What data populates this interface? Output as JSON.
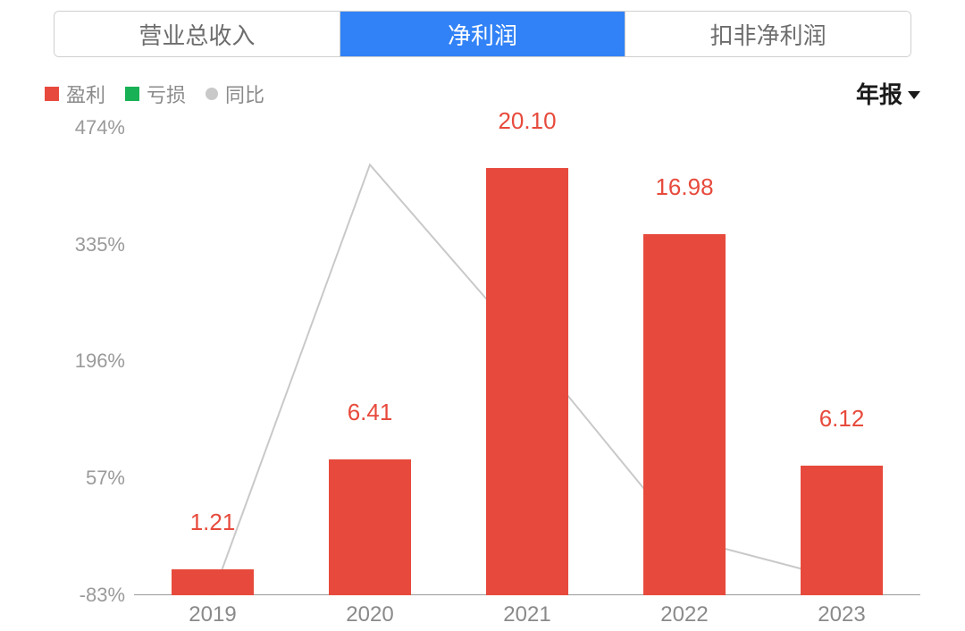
{
  "tabs": {
    "items": [
      {
        "label": "营业总收入",
        "active": false
      },
      {
        "label": "净利润",
        "active": true
      },
      {
        "label": "扣非净利润",
        "active": false
      }
    ],
    "active_bg": "#3182f6",
    "active_fg": "#ffffff",
    "inactive_fg": "#6d6d6d",
    "border_color": "#cfcfcf"
  },
  "legend": {
    "items": [
      {
        "label": "盈利",
        "color": "#e74a3c",
        "shape": "square"
      },
      {
        "label": "亏损",
        "color": "#19b155",
        "shape": "square"
      },
      {
        "label": "同比",
        "color": "#c9c9c9",
        "shape": "dot"
      }
    ],
    "text_color": "#8a8a8a",
    "fontsize": 22
  },
  "dropdown": {
    "label": "年报",
    "text_color": "#1a1a1a",
    "fontsize": 26
  },
  "chart": {
    "type": "bar+line",
    "categories": [
      "2019",
      "2020",
      "2021",
      "2022",
      "2023"
    ],
    "bar_values": [
      1.21,
      6.41,
      20.1,
      16.98,
      6.12
    ],
    "bar_value_labels": [
      "1.21",
      "6.41",
      "20.10",
      "16.98",
      "6.12"
    ],
    "bar_kind": [
      "profit",
      "profit",
      "profit",
      "profit",
      "profit"
    ],
    "bar_colors": {
      "profit": "#e74a3c",
      "loss": "#19b155"
    },
    "bar_value_max": 22.0,
    "bar_width_ratio": 0.52,
    "line_values_pct": [
      -83,
      430,
      214,
      -15,
      -64
    ],
    "line_color": "#c9c9c9",
    "line_width": 2,
    "y_axis": {
      "ticks_pct": [
        -83,
        57,
        196,
        335,
        474
      ],
      "tick_labels": [
        "-83%",
        "57%",
        "196%",
        "335%",
        "474%"
      ],
      "label_color": "#9a9a9a",
      "label_fontsize": 22
    },
    "x_axis": {
      "label_color": "#8a8a8a",
      "label_fontsize": 24
    },
    "baseline_color": "#9a9a9a",
    "value_label_color": "#e74a3c",
    "value_label_fontsize": 26,
    "background_color": "#ffffff"
  }
}
